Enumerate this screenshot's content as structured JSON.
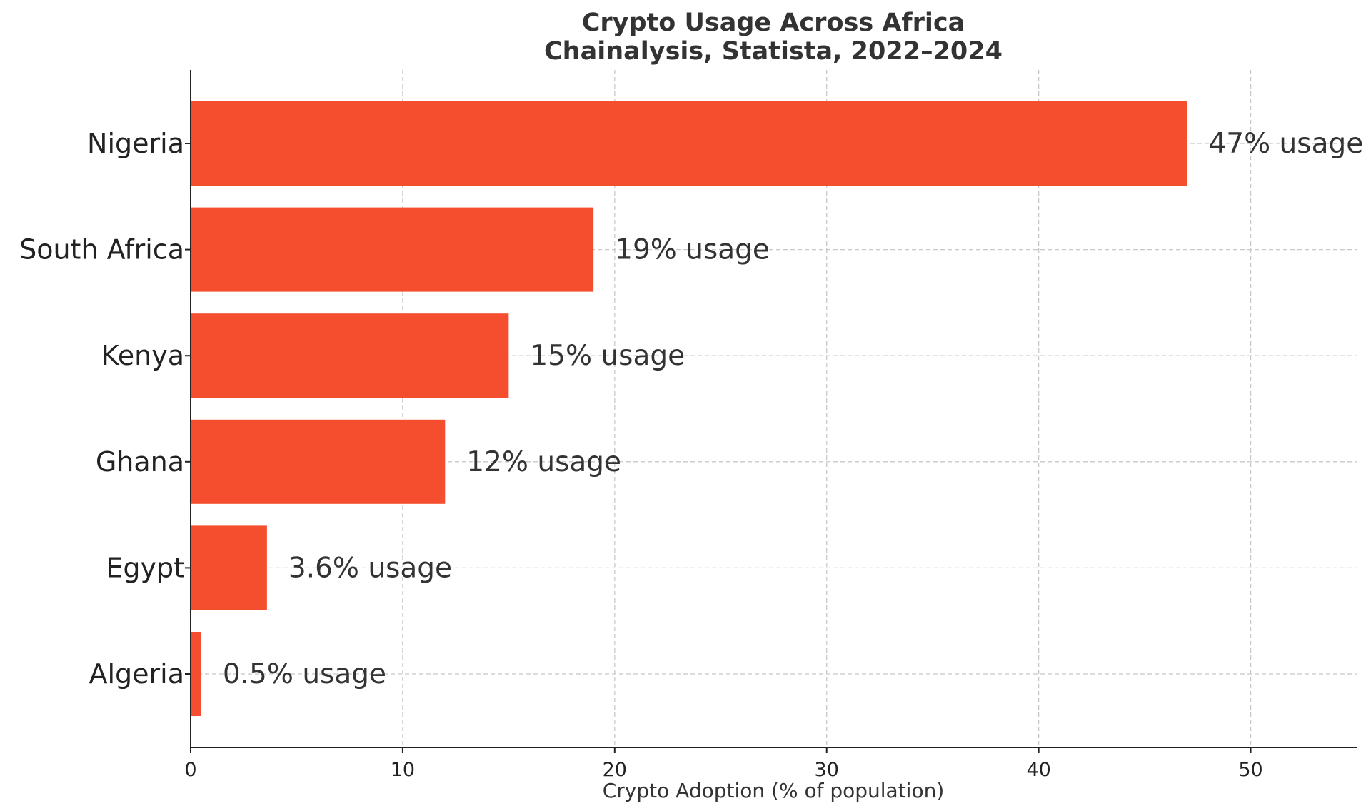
{
  "chart_data": {
    "type": "bar",
    "orientation": "horizontal",
    "title": "Crypto Usage Across Africa",
    "subtitle": "Chainalysis, Statista, 2022–2024",
    "xlabel": "Crypto Adoption (% of population)",
    "ylabel": "",
    "categories": [
      "Nigeria",
      "South Africa",
      "Kenya",
      "Ghana",
      "Egypt",
      "Algeria"
    ],
    "values": [
      47,
      19,
      15,
      12,
      3.6,
      0.5
    ],
    "data_labels": [
      "47% usage",
      "19% usage",
      "15% usage",
      "12% usage",
      "3.6% usage",
      "0.5% usage"
    ],
    "xlim": [
      0,
      55
    ],
    "xticks": [
      0,
      10,
      20,
      30,
      40,
      50
    ],
    "grid": true,
    "bar_color": "#f44e2f"
  }
}
